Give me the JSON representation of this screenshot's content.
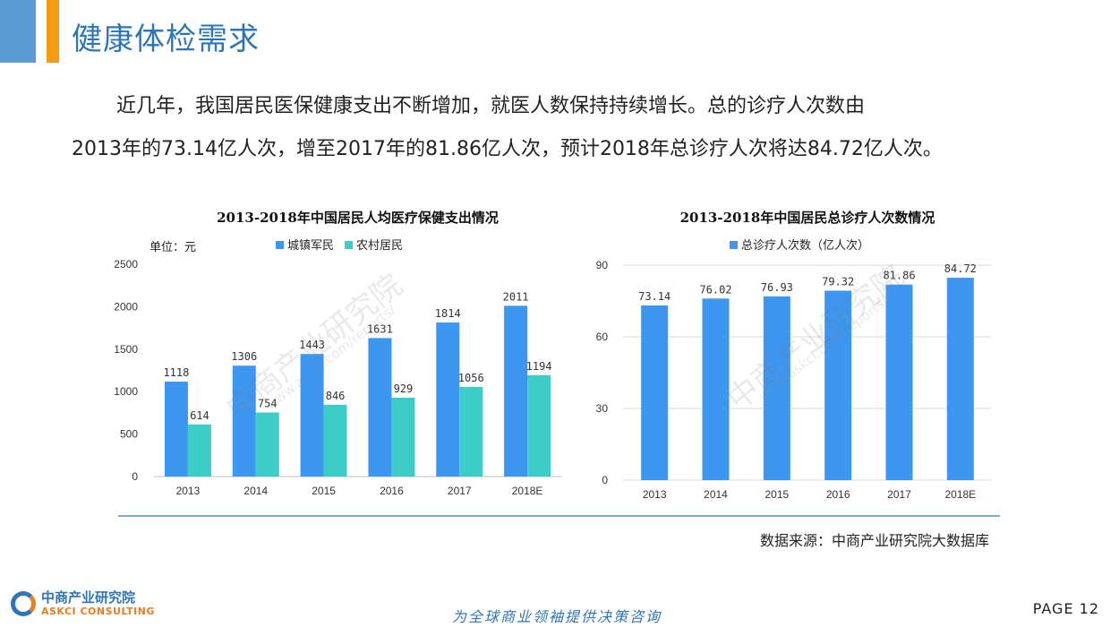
{
  "header": {
    "title": "健康体检需求",
    "colors": {
      "accent": "#2e75b6",
      "orange": "#f39c12"
    }
  },
  "intro": {
    "line1": "近几年，我国居民医保健康支出不断增加，就医人数保持持续增长。总的诊疗人次数由",
    "line2": "2013年的73.14亿人次，增至2017年的81.86亿人次，预计2018年总诊疗人次将达84.72亿人次。"
  },
  "chart_data": [
    {
      "type": "bar",
      "title": "2013-2018年中国居民人均医疗保健支出情况",
      "unit_label": "单位：元",
      "categories": [
        "2013",
        "2014",
        "2015",
        "2016",
        "2017",
        "2018E"
      ],
      "series": [
        {
          "name": "城镇军民",
          "color": "#3d96f0",
          "values": [
            1118,
            1306,
            1443,
            1631,
            1814,
            2011
          ]
        },
        {
          "name": "农村居民",
          "color": "#3ccdc7",
          "values": [
            614,
            754,
            846,
            929,
            1056,
            1194
          ]
        }
      ],
      "yticks": [
        "0",
        "500",
        "1000",
        "1500",
        "2000",
        "2500"
      ],
      "ylim": [
        0,
        2500
      ],
      "legend": "top",
      "grid": false
    },
    {
      "type": "bar",
      "title": "2013-2018年中国居民总诊疗人次数情况",
      "categories": [
        "2013",
        "2014",
        "2015",
        "2016",
        "2017",
        "2018E"
      ],
      "series": [
        {
          "name": "总诊疗人次数（亿人次）",
          "color": "#3d96f0",
          "values": [
            73.14,
            76.02,
            76.93,
            79.32,
            81.86,
            84.72
          ]
        }
      ],
      "yticks": [
        "0",
        "30",
        "60",
        "90"
      ],
      "ylim": [
        0,
        90
      ],
      "legend": "top",
      "grid": true
    }
  ],
  "source": "数据来源：中商产业研究院大数据库",
  "footer": {
    "logo_cn": "中商产业研究院",
    "logo_en": "ASKCI CONSULTING",
    "slogan": "为全球商业领袖提供决策咨询",
    "page": "PAGE  12"
  },
  "watermark": {
    "cn": "中商产业研究院",
    "en": "www.askci.com/reports/"
  }
}
